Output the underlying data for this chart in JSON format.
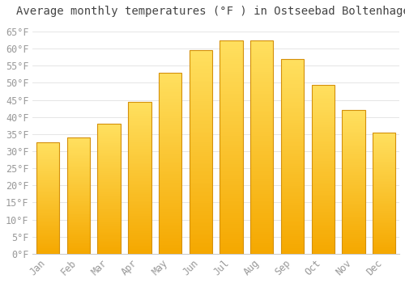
{
  "title": "Average monthly temperatures (°F ) in Ostseebad Boltenhagen",
  "months": [
    "Jan",
    "Feb",
    "Mar",
    "Apr",
    "May",
    "Jun",
    "Jul",
    "Aug",
    "Sep",
    "Oct",
    "Nov",
    "Dec"
  ],
  "values": [
    32.5,
    34.0,
    38.0,
    44.5,
    53.0,
    59.5,
    62.5,
    62.5,
    57.0,
    49.5,
    42.0,
    35.5
  ],
  "bar_color_bottom": "#F5A800",
  "bar_color_top": "#FFE060",
  "bar_edge_color": "#D4900A",
  "background_color": "#FFFFFF",
  "grid_color": "#E0E0E0",
  "ylim": [
    0,
    68
  ],
  "yticks": [
    0,
    5,
    10,
    15,
    20,
    25,
    30,
    35,
    40,
    45,
    50,
    55,
    60,
    65
  ],
  "title_fontsize": 10,
  "tick_fontsize": 8.5,
  "tick_font": "monospace",
  "bar_width": 0.75
}
